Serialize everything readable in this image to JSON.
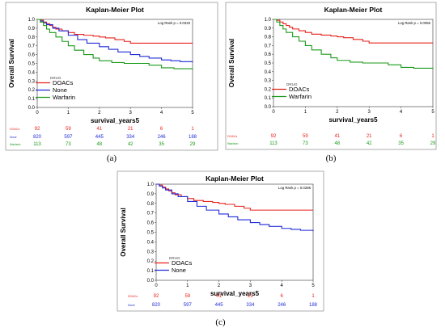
{
  "figure": {
    "panels": [
      {
        "id": "a",
        "caption": "(a)",
        "title": "Kaplan-Meier Plot",
        "xlabel": "survival_years5",
        "ylabel": "Overall Survival",
        "logrank": "Log Rank p = 0.0333",
        "legend_title": "DRUG",
        "legend": [
          "DOACs",
          "None",
          "Warfarin"
        ],
        "risk_rows": [
          {
            "label": "DOACs",
            "color": "#e8211b",
            "values": [
              "92",
              "59",
              "41",
              "21",
              "6",
              "1"
            ]
          },
          {
            "label": "None",
            "color": "#1f2bd8",
            "values": [
              "820",
              "597",
              "445",
              "334",
              "246",
              "188"
            ]
          },
          {
            "label": "Warfarin",
            "color": "#1a9a1a",
            "values": [
              "113",
              "73",
              "48",
              "42",
              "35",
              "29"
            ]
          }
        ]
      },
      {
        "id": "b",
        "caption": "(b)",
        "title": "Kaplan-Meier Plot",
        "xlabel": "survival_years5",
        "ylabel": "Overall Survival",
        "logrank": "Log Rank p = 0.0056",
        "legend_title": "DRUG",
        "legend": [
          "DOACs",
          "Warfarin"
        ],
        "risk_rows": [
          {
            "label": "DOACs",
            "color": "#e8211b",
            "values": [
              "92",
              "59",
              "41",
              "21",
              "6",
              "1"
            ]
          },
          {
            "label": "Warfarin",
            "color": "#1a9a1a",
            "values": [
              "113",
              "73",
              "48",
              "42",
              "35",
              "29"
            ]
          }
        ]
      },
      {
        "id": "c",
        "caption": "(c)",
        "title": "Kaplan-Meier Plot",
        "xlabel": "survival_years5",
        "ylabel": "Overall Survival",
        "logrank": "Log Rank p = 0.0285",
        "legend_title": "DRUG",
        "legend": [
          "DOACs",
          "None"
        ],
        "risk_rows": [
          {
            "label": "DOACs",
            "color": "#e8211b",
            "values": [
              "92",
              "59",
              "41",
              "21",
              "6",
              "1"
            ]
          },
          {
            "label": "None",
            "color": "#1f2bd8",
            "values": [
              "820",
              "597",
              "445",
              "334",
              "246",
              "188"
            ]
          }
        ]
      }
    ]
  },
  "chart_data": [
    {
      "type": "line",
      "title": "Kaplan-Meier Plot",
      "xlabel": "survival_years5",
      "ylabel": "Overall Survival",
      "xlim": [
        0,
        5
      ],
      "ylim": [
        0,
        1.0
      ],
      "x_ticks": [
        "0",
        "1",
        "2",
        "3",
        "4",
        "5"
      ],
      "y_ticks": [
        "0.0",
        "0.1",
        "0.2",
        "0.3",
        "0.4",
        "0.5",
        "0.6",
        "0.7",
        "0.8",
        "0.9",
        "1.0"
      ],
      "grid": false,
      "legend_position": "bottom-left",
      "series": [
        {
          "name": "DOACs",
          "color": "#e8211b",
          "x": [
            0,
            0.1,
            0.2,
            0.3,
            0.4,
            0.5,
            0.6,
            0.8,
            1.0,
            1.2,
            1.5,
            1.8,
            2.0,
            2.2,
            2.5,
            2.8,
            3.0,
            5.0
          ],
          "y": [
            1.0,
            0.99,
            0.97,
            0.95,
            0.93,
            0.91,
            0.89,
            0.87,
            0.85,
            0.83,
            0.82,
            0.81,
            0.8,
            0.79,
            0.77,
            0.75,
            0.73,
            0.73
          ]
        },
        {
          "name": "None",
          "color": "#1f2bd8",
          "x": [
            0,
            0.1,
            0.2,
            0.3,
            0.5,
            0.7,
            1.0,
            1.3,
            1.6,
            2.0,
            2.3,
            2.6,
            3.0,
            3.3,
            3.6,
            4.0,
            4.3,
            4.6,
            5.0
          ],
          "y": [
            1.0,
            0.98,
            0.96,
            0.94,
            0.9,
            0.87,
            0.82,
            0.77,
            0.73,
            0.69,
            0.66,
            0.63,
            0.6,
            0.58,
            0.56,
            0.54,
            0.53,
            0.52,
            0.51
          ]
        },
        {
          "name": "Warfarin",
          "color": "#1a9a1a",
          "x": [
            0,
            0.1,
            0.2,
            0.3,
            0.4,
            0.6,
            0.8,
            1.0,
            1.2,
            1.5,
            1.8,
            2.0,
            2.4,
            2.8,
            3.0,
            3.6,
            4.0,
            4.4,
            5.0
          ],
          "y": [
            1.0,
            0.97,
            0.93,
            0.89,
            0.85,
            0.8,
            0.75,
            0.7,
            0.65,
            0.6,
            0.56,
            0.53,
            0.51,
            0.5,
            0.5,
            0.48,
            0.45,
            0.44,
            0.43
          ]
        }
      ]
    },
    {
      "type": "line",
      "title": "Kaplan-Meier Plot",
      "xlabel": "survival_years5",
      "ylabel": "Overall Survival",
      "xlim": [
        0,
        5
      ],
      "ylim": [
        0,
        1.0
      ],
      "x_ticks": [
        "0",
        "1",
        "2",
        "3",
        "4",
        "5"
      ],
      "y_ticks": [
        "0.0",
        "0.1",
        "0.2",
        "0.3",
        "0.4",
        "0.5",
        "0.6",
        "0.7",
        "0.8",
        "0.9",
        "1.0"
      ],
      "grid": false,
      "legend_position": "bottom-left",
      "series": [
        {
          "name": "DOACs",
          "color": "#e8211b",
          "x": [
            0,
            0.1,
            0.2,
            0.3,
            0.4,
            0.5,
            0.6,
            0.8,
            1.0,
            1.2,
            1.5,
            1.8,
            2.0,
            2.2,
            2.5,
            2.8,
            3.0,
            5.0
          ],
          "y": [
            1.0,
            0.99,
            0.97,
            0.95,
            0.93,
            0.91,
            0.89,
            0.87,
            0.85,
            0.83,
            0.82,
            0.81,
            0.8,
            0.79,
            0.77,
            0.75,
            0.73,
            0.73
          ]
        },
        {
          "name": "Warfarin",
          "color": "#1a9a1a",
          "x": [
            0,
            0.1,
            0.2,
            0.3,
            0.4,
            0.6,
            0.8,
            1.0,
            1.2,
            1.5,
            1.8,
            2.0,
            2.4,
            2.8,
            3.0,
            3.6,
            4.0,
            4.4,
            5.0
          ],
          "y": [
            1.0,
            0.97,
            0.93,
            0.89,
            0.85,
            0.8,
            0.75,
            0.7,
            0.65,
            0.6,
            0.56,
            0.53,
            0.51,
            0.5,
            0.5,
            0.48,
            0.45,
            0.44,
            0.43
          ]
        }
      ]
    },
    {
      "type": "line",
      "title": "Kaplan-Meier Plot",
      "xlabel": "survival_years5",
      "ylabel": "Overall Survival",
      "xlim": [
        0,
        5
      ],
      "ylim": [
        0,
        1.0
      ],
      "x_ticks": [
        "0",
        "1",
        "2",
        "3",
        "4",
        "5"
      ],
      "y_ticks": [
        "0.0",
        "0.1",
        "0.2",
        "0.3",
        "0.4",
        "0.5",
        "0.6",
        "0.7",
        "0.8",
        "0.9",
        "1.0"
      ],
      "grid": false,
      "legend_position": "bottom-left",
      "series": [
        {
          "name": "DOACs",
          "color": "#e8211b",
          "x": [
            0,
            0.1,
            0.2,
            0.3,
            0.4,
            0.5,
            0.6,
            0.8,
            1.0,
            1.2,
            1.5,
            1.8,
            2.0,
            2.2,
            2.5,
            2.8,
            3.0,
            5.0
          ],
          "y": [
            1.0,
            0.99,
            0.97,
            0.95,
            0.93,
            0.91,
            0.89,
            0.87,
            0.85,
            0.83,
            0.82,
            0.81,
            0.8,
            0.79,
            0.77,
            0.75,
            0.73,
            0.73
          ]
        },
        {
          "name": "None",
          "color": "#1f2bd8",
          "x": [
            0,
            0.1,
            0.2,
            0.3,
            0.5,
            0.7,
            1.0,
            1.3,
            1.6,
            2.0,
            2.3,
            2.6,
            3.0,
            3.3,
            3.6,
            4.0,
            4.3,
            4.6,
            5.0
          ],
          "y": [
            1.0,
            0.98,
            0.96,
            0.94,
            0.9,
            0.87,
            0.82,
            0.77,
            0.73,
            0.69,
            0.66,
            0.63,
            0.6,
            0.58,
            0.56,
            0.54,
            0.53,
            0.52,
            0.51
          ]
        }
      ]
    }
  ]
}
